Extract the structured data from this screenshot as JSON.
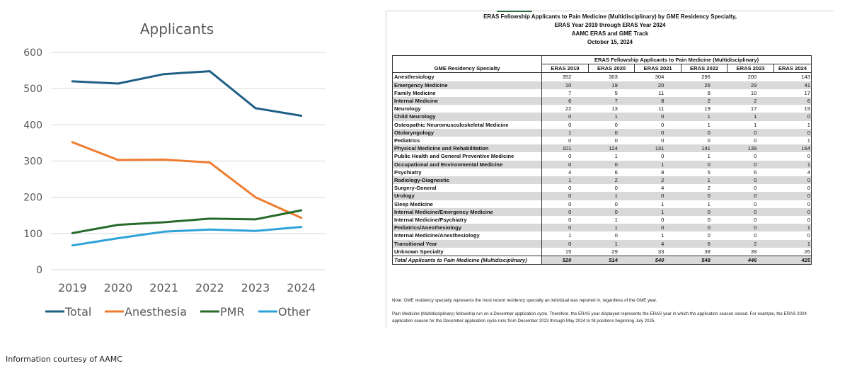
{
  "chart_data": {
    "type": "line",
    "title": "Applicants",
    "x": [
      "2019",
      "2020",
      "2021",
      "2022",
      "2023",
      "2024"
    ],
    "xlabel": "",
    "ylabel": "",
    "ylim": [
      0,
      600
    ],
    "yticks": [
      0,
      100,
      200,
      300,
      400,
      500,
      600
    ],
    "grid": true,
    "legend_position": "bottom",
    "series": [
      {
        "name": "Total",
        "color": "#1f5f86",
        "values": [
          520,
          514,
          540,
          548,
          446,
          425
        ]
      },
      {
        "name": "Anesthesia",
        "color": "#ed7d31",
        "values": [
          352,
          303,
          304,
          296,
          200,
          143
        ]
      },
      {
        "name": "PMR",
        "color": "#266b2a",
        "values": [
          101,
          124,
          131,
          141,
          139,
          164
        ]
      },
      {
        "name": "Other",
        "color": "#2ea2d8",
        "values": [
          67,
          87,
          105,
          111,
          107,
          118
        ]
      }
    ]
  },
  "footer": {
    "credit": "Information courtesy of AAMC"
  },
  "table_doc": {
    "headings": [
      "ERAS Fellowship Applicants to Pain Medicine (Multidisciplinary) by GME Residency Specialty,",
      "ERAS Year 2019 through ERAS Year 2024",
      "AAMC ERAS and GME Track",
      "October 15, 2024"
    ],
    "group_header": "ERAS Fellowship Applicants to Pain Medicine (Multidisciplinary)",
    "specialty_header": "GME Residency Specialty",
    "year_headers": [
      "ERAS 2019",
      "ERAS 2020",
      "ERAS 2021",
      "ERAS 2022",
      "ERAS 2023",
      "ERAS 2024"
    ],
    "rows": [
      {
        "specialty": "Anesthesiology",
        "values": [
          352,
          303,
          304,
          296,
          200,
          143
        ]
      },
      {
        "specialty": "Emergency Medicine",
        "values": [
          10,
          19,
          20,
          26,
          29,
          41
        ]
      },
      {
        "specialty": "Family Medicine",
        "values": [
          7,
          5,
          11,
          8,
          10,
          17
        ]
      },
      {
        "specialty": "Internal Medicine",
        "values": [
          6,
          7,
          8,
          2,
          2,
          6
        ]
      },
      {
        "specialty": "Neurology",
        "values": [
          22,
          13,
          11,
          19,
          17,
          19
        ]
      },
      {
        "specialty": "Child Neurology",
        "values": [
          0,
          1,
          0,
          1,
          1,
          0
        ]
      },
      {
        "specialty": "Osteopathic Neuromusculoskeletal Medicine",
        "values": [
          0,
          0,
          0,
          1,
          1,
          1
        ]
      },
      {
        "specialty": "Otolaryngology",
        "values": [
          1,
          0,
          0,
          0,
          0,
          0
        ]
      },
      {
        "specialty": "Pediatrics",
        "values": [
          0,
          0,
          0,
          0,
          0,
          1
        ]
      },
      {
        "specialty": "Physical Medicine and Rehabilitation",
        "values": [
          101,
          124,
          131,
          141,
          139,
          164
        ]
      },
      {
        "specialty": "Public Health and General Preventive Medicine",
        "values": [
          0,
          1,
          0,
          1,
          0,
          0
        ]
      },
      {
        "specialty": "Occupational and Environmental Medicine",
        "values": [
          0,
          0,
          1,
          0,
          0,
          1
        ]
      },
      {
        "specialty": "Psychiatry",
        "values": [
          4,
          6,
          8,
          5,
          6,
          4
        ]
      },
      {
        "specialty": "Radiology-Diagnostic",
        "values": [
          1,
          2,
          2,
          1,
          0,
          0
        ]
      },
      {
        "specialty": "Surgery-General",
        "values": [
          0,
          0,
          4,
          2,
          0,
          0
        ]
      },
      {
        "specialty": "Urology",
        "values": [
          0,
          1,
          0,
          0,
          0,
          0
        ]
      },
      {
        "specialty": "Sleep Medicine",
        "values": [
          0,
          0,
          1,
          1,
          0,
          0
        ]
      },
      {
        "specialty": "Internal Medicine/Emergency Medicine",
        "values": [
          0,
          0,
          1,
          0,
          0,
          0
        ]
      },
      {
        "specialty": "Internal Medicine/Psychiatry",
        "values": [
          0,
          1,
          0,
          0,
          0,
          0
        ]
      },
      {
        "specialty": "Pediatrics/Anesthesiology",
        "values": [
          0,
          1,
          0,
          0,
          0,
          1
        ]
      },
      {
        "specialty": "Internal Medicine/Anesthesiology",
        "values": [
          1,
          0,
          1,
          0,
          0,
          0
        ]
      },
      {
        "specialty": "Transitional Year",
        "values": [
          0,
          1,
          4,
          6,
          2,
          1
        ]
      },
      {
        "specialty": "Unknown Specialty",
        "values": [
          15,
          29,
          33,
          38,
          39,
          26
        ]
      }
    ],
    "total_row": {
      "specialty": "Total Applicants to Pain Medicine (Multidisciplinary)",
      "values": [
        520,
        514,
        540,
        548,
        446,
        425
      ]
    },
    "note_1": "Note: GME residency specialty represents the most recent residency specialty an individual was reported in, regardless of the GME year.",
    "note_2": "Pain Medicine (Multidisciplinary) fellowship run on a December application cycle. Therefore, the ERAS year displayed represents the ERAS year in which the application season closed. For example, the ERAS 2024 application season for the December application cycle  runs from December 2023  through May 2024 to fill positions beginning July 2025."
  }
}
